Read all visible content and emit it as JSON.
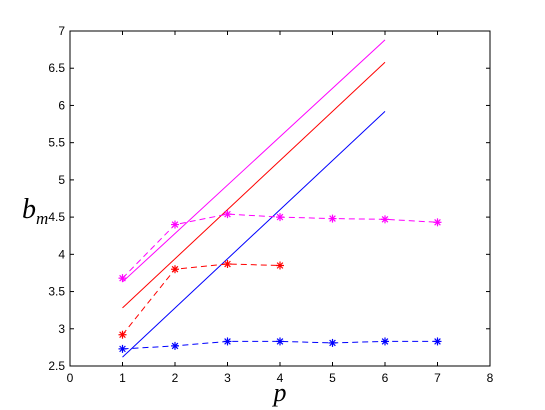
{
  "chart_data": {
    "type": "line",
    "title": "",
    "xlabel": "p",
    "ylabel": {
      "main": "b",
      "sub": "m"
    },
    "xlim": [
      0,
      8
    ],
    "ylim": [
      2.5,
      7
    ],
    "xticks": [
      "0",
      "1",
      "2",
      "3",
      "4",
      "5",
      "6",
      "7",
      "8"
    ],
    "yticks": [
      "2.5",
      "3",
      "3.5",
      "4",
      "4.5",
      "5",
      "5.5",
      "6",
      "6.5",
      "7"
    ],
    "grid": false,
    "legend": "none",
    "series": [
      {
        "style": "solid",
        "color": "#ff00ff",
        "x": [
          1,
          6
        ],
        "y": [
          3.63,
          6.88
        ]
      },
      {
        "style": "solid",
        "color": "#ff0000",
        "x": [
          1,
          6
        ],
        "y": [
          3.28,
          6.58
        ]
      },
      {
        "style": "solid",
        "color": "#0000ff",
        "x": [
          1,
          6
        ],
        "y": [
          2.62,
          5.92
        ]
      },
      {
        "style": "dashed",
        "marker": "asterisk",
        "color": "#ff00ff",
        "x": [
          1,
          2,
          3,
          4,
          5,
          6,
          7
        ],
        "y": [
          3.68,
          4.4,
          4.54,
          4.5,
          4.48,
          4.47,
          4.43
        ]
      },
      {
        "style": "dashed",
        "marker": "asterisk",
        "color": "#ff0000",
        "x": [
          1,
          2,
          3,
          4
        ],
        "y": [
          2.92,
          3.8,
          3.87,
          3.85
        ]
      },
      {
        "style": "dashed",
        "marker": "asterisk",
        "color": "#0000ff",
        "x": [
          1,
          2,
          3,
          4,
          5,
          6,
          7
        ],
        "y": [
          2.73,
          2.77,
          2.83,
          2.83,
          2.81,
          2.83,
          2.83
        ]
      }
    ]
  }
}
